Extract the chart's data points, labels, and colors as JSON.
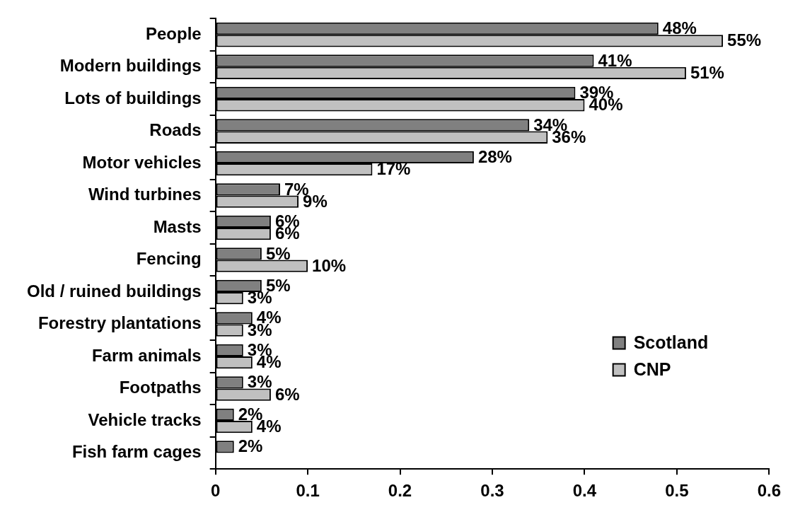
{
  "chart_data": {
    "type": "bar",
    "orientation": "horizontal",
    "categories": [
      "People",
      "Modern buildings",
      "Lots of buildings",
      "Roads",
      "Motor vehicles",
      "Wind turbines",
      "Masts",
      "Fencing",
      "Old / ruined buildings",
      "Forestry plantations",
      "Farm animals",
      "Footpaths",
      "Vehicle tracks",
      "Fish farm cages"
    ],
    "series": [
      {
        "name": "Scotland",
        "color": "#808080",
        "values": [
          0.48,
          0.41,
          0.39,
          0.34,
          0.28,
          0.07,
          0.06,
          0.05,
          0.05,
          0.04,
          0.03,
          0.03,
          0.02,
          0.02
        ],
        "value_labels": [
          "48%",
          "41%",
          "39%",
          "34%",
          "28%",
          "7%",
          "6%",
          "5%",
          "5%",
          "4%",
          "3%",
          "3%",
          "2%",
          "2%"
        ]
      },
      {
        "name": "CNP",
        "color": "#c0c0c0",
        "values": [
          0.55,
          0.51,
          0.4,
          0.36,
          0.17,
          0.09,
          0.06,
          0.1,
          0.03,
          0.03,
          0.04,
          0.06,
          0.04,
          null
        ],
        "value_labels": [
          "55%",
          "51%",
          "40%",
          "36%",
          "17%",
          "9%",
          "6%",
          "10%",
          "3%",
          "3%",
          "4%",
          "6%",
          "4%",
          null
        ]
      }
    ],
    "xlim": [
      0,
      0.6
    ],
    "xticks": [
      0,
      0.1,
      0.2,
      0.3,
      0.4,
      0.5,
      0.6
    ],
    "legend": "right"
  }
}
